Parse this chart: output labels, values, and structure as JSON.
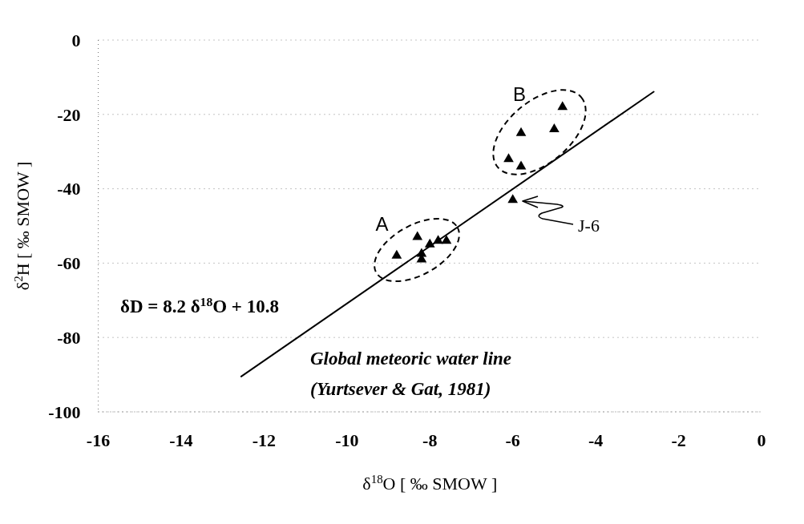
{
  "chart_data": {
    "type": "scatter",
    "xlabel": "δ$^{18}$O [ ‰ SMOW ]",
    "ylabel": "δ$^{2}$H [ ‰ SMOW ]",
    "xlim": [
      -16,
      0
    ],
    "xticks": [
      -16,
      -14,
      -12,
      -10,
      -8,
      -6,
      -4,
      -2,
      0
    ],
    "ylim": [
      -100,
      0
    ],
    "yticks": [
      -100,
      -80,
      -60,
      -40,
      -20,
      0
    ],
    "grid": "y",
    "marker": "triangle",
    "series": [
      {
        "type": "scatter",
        "color": "#000000",
        "x": [
          -8.8,
          -8.3,
          -8.2,
          -8.2,
          -8.0,
          -7.8,
          -7.6,
          -4.8,
          -5.0,
          -5.8,
          -6.1,
          -5.8,
          -6.0
        ],
        "values": [
          -58,
          -53,
          -57.5,
          -59,
          -55,
          -54,
          -54,
          -18,
          -24,
          -25,
          -32,
          -34,
          -43
        ]
      },
      {
        "type": "line",
        "color": "#000000",
        "marker": "none",
        "line_style": "solid",
        "x": [
          -12.55,
          -2.6
        ],
        "values": [
          -90.5,
          -13.9
        ]
      }
    ],
    "annotations": [
      "A",
      "B",
      "J-6",
      "δD = 8.2 δ$^{18}$O + 10.8",
      "Global meteoric water line",
      "(Yurtsever & Gat, 1981)"
    ]
  }
}
